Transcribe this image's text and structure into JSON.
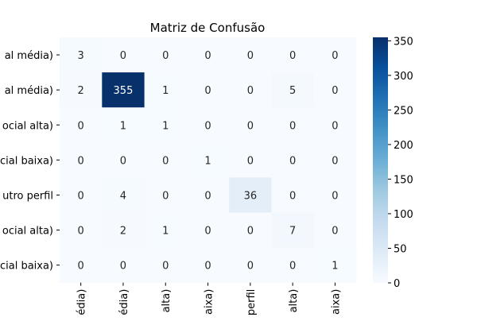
{
  "chart_data": {
    "type": "heatmap",
    "title": "Matriz de Confusão",
    "y_tick_labels": [
      "al média)",
      "al média)",
      "ocial alta)",
      "cial baixa)",
      "utro perfil",
      "ocial alta)",
      "cial baixa)"
    ],
    "x_tick_labels": [
      "édia)",
      "édia)",
      "alta)",
      "aixa)",
      "perfil",
      "alta)",
      "aixa)"
    ],
    "matrix": [
      [
        3,
        0,
        0,
        0,
        0,
        0,
        0
      ],
      [
        2,
        355,
        1,
        0,
        0,
        5,
        0
      ],
      [
        0,
        1,
        1,
        0,
        0,
        0,
        0
      ],
      [
        0,
        0,
        0,
        1,
        0,
        0,
        0
      ],
      [
        0,
        4,
        0,
        0,
        36,
        0,
        0
      ],
      [
        0,
        2,
        1,
        0,
        0,
        7,
        0
      ],
      [
        0,
        0,
        0,
        0,
        0,
        0,
        1
      ]
    ],
    "colorbar": {
      "colormap": "Blues",
      "range": [
        0,
        355
      ],
      "ticks": [
        0,
        50,
        100,
        150,
        200,
        250,
        300,
        350
      ]
    }
  }
}
